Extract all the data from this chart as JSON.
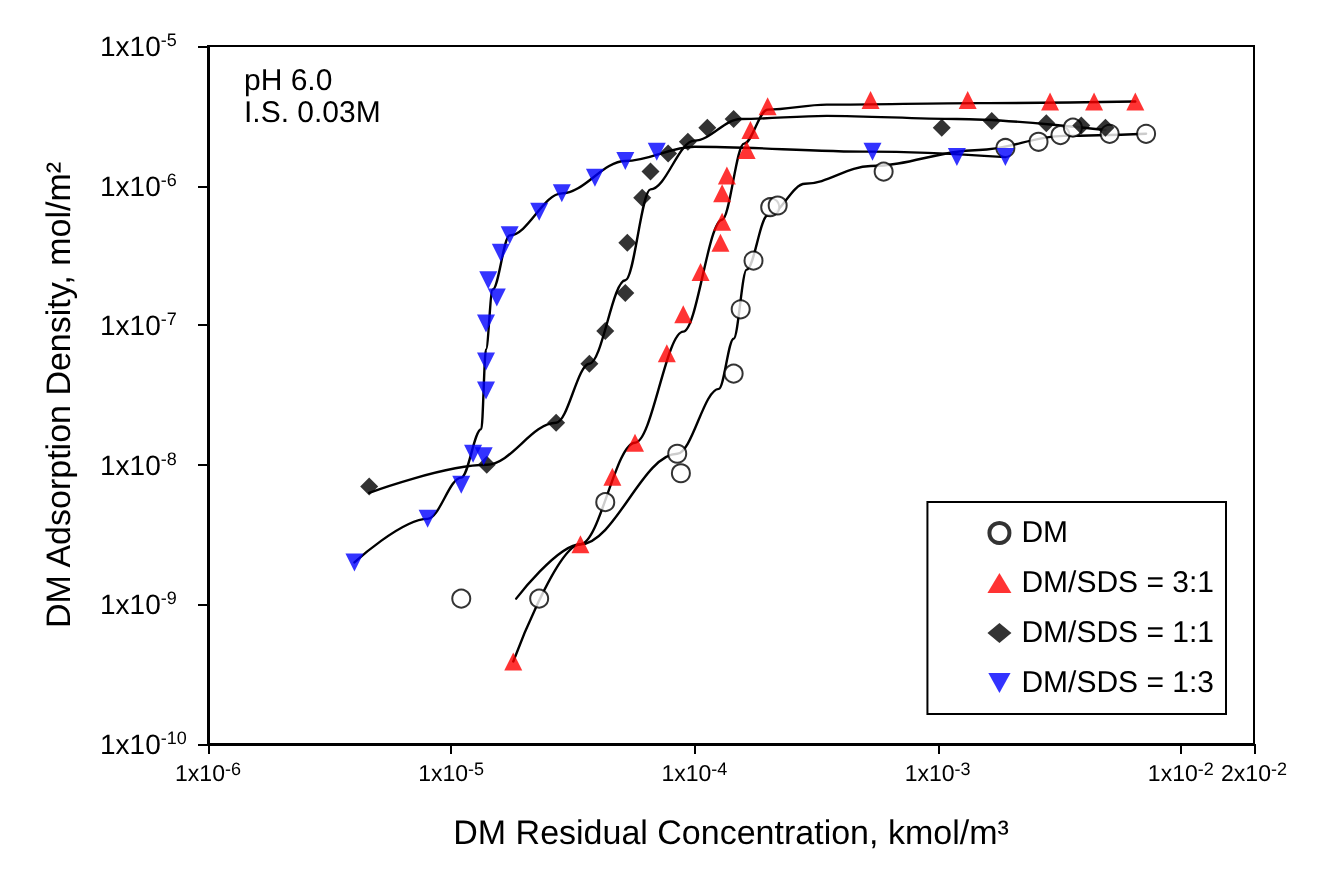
{
  "chart_data": {
    "type": "scatter",
    "xlabel": "DM Residual Concentration, kmol/m³",
    "ylabel": "DM Adsorption Density, mol/m²",
    "annotations": [
      "pH 6.0",
      "I.S. 0.03M"
    ],
    "log": "xy",
    "grid": false,
    "legend": "bottom right",
    "xlim": [
      1e-06,
      0.02
    ],
    "xticks": [
      {
        "value": 1e-06,
        "label": "1x10$^{-6}$"
      },
      {
        "value": 1e-05,
        "label": "1x10$^{-5}$"
      },
      {
        "value": 0.0001,
        "label": "1x10$^{-4}$"
      },
      {
        "value": 0.001,
        "label": "1x10$^{-3}$"
      },
      {
        "value": 0.01,
        "label": "1x10$^{-2}$"
      },
      {
        "value": 0.02,
        "label": "2x10$^{-2}$"
      }
    ],
    "ylim": [
      1e-10,
      1e-05
    ],
    "yticks": [
      {
        "value": 1e-10,
        "label": "1x10$^{-10}$"
      },
      {
        "value": 1e-09,
        "label": "1x10$^{-9}$"
      },
      {
        "value": 1e-08,
        "label": "1x10$^{-8}$"
      },
      {
        "value": 1e-07,
        "label": "1x10$^{-7}$"
      },
      {
        "value": 1e-06,
        "label": "1x10$^{-6}$"
      },
      {
        "value": 1e-05,
        "label": "1x10$^{-5}$"
      }
    ],
    "series": [
      {
        "name": "DM",
        "color": "#000000",
        "marker": "circle",
        "x": [
          1.1e-05,
          2.3e-05,
          4.3e-05,
          8.5e-05,
          8.8e-05,
          0.000145,
          0.000155,
          0.000175,
          0.000205,
          0.00022,
          0.0006,
          0.0019,
          0.0026,
          0.0032,
          0.0036,
          0.0051,
          0.0072
        ],
        "values": [
          1.1e-09,
          1.1e-09,
          5.4e-09,
          1.2e-08,
          8.7e-09,
          4.5e-08,
          1.3e-07,
          2.9e-07,
          7e-07,
          7.2e-07,
          1.26e-06,
          1.86e-06,
          2.06e-06,
          2.3e-06,
          2.6e-06,
          2.35e-06,
          2.35e-06
        ]
      },
      {
        "name": "DM/SDS = 3:1",
        "color": "#ff0000",
        "marker": "triangle",
        "x": [
          1.8e-05,
          3.4e-05,
          4.6e-05,
          5.7e-05,
          7.7e-05,
          9e-05,
          0.000106,
          0.000128,
          0.00013,
          0.00013,
          0.000136,
          0.000164,
          0.00017,
          0.0002,
          0.00053,
          0.00133,
          0.0029,
          0.0044,
          0.0065
        ],
        "values": [
          3.9e-10,
          2.7e-09,
          8.2e-09,
          1.44e-08,
          6.3e-08,
          1.2e-07,
          2.4e-07,
          3.9e-07,
          5.5e-07,
          8.8e-07,
          1.18e-06,
          1.8e-06,
          2.5e-06,
          3.7e-06,
          4.1e-06,
          4.1e-06,
          4e-06,
          4e-06,
          4e-06
        ]
      },
      {
        "name": "DM/SDS = 1:1",
        "color": "#000000",
        "marker": "diamond",
        "x": [
          4.6e-06,
          1.4e-05,
          2.7e-05,
          3.7e-05,
          4.3e-05,
          5.2e-05,
          5.3e-05,
          6.1e-05,
          6.6e-05,
          7.8e-05,
          9.4e-05,
          0.000113,
          0.000145,
          0.00104,
          0.00167,
          0.0028,
          0.0039,
          0.0049
        ],
        "values": [
          7e-09,
          1e-08,
          2e-08,
          5.3e-08,
          9.1e-08,
          1.7e-07,
          3.9e-07,
          8.2e-07,
          1.26e-06,
          1.7e-06,
          2.06e-06,
          2.6e-06,
          3e-06,
          2.6e-06,
          2.9e-06,
          2.8e-06,
          2.7e-06,
          2.6e-06
        ]
      },
      {
        "name": "DM/SDS = 1:3",
        "color": "#0000ff",
        "marker": "triangle-down",
        "x": [
          4e-06,
          8e-06,
          1.1e-05,
          1.23e-05,
          1.36e-05,
          1.39e-05,
          1.39e-05,
          1.39e-05,
          1.54e-05,
          1.42e-05,
          1.6e-05,
          1.74e-05,
          2.3e-05,
          2.85e-05,
          3.9e-05,
          5.2e-05,
          7e-05,
          0.00054,
          0.0012,
          0.0019
        ],
        "values": [
          2e-09,
          4.1e-09,
          7.2e-09,
          1.2e-08,
          1.15e-08,
          3.4e-08,
          5.5e-08,
          1.03e-07,
          1.58e-07,
          2.1e-07,
          3.3e-07,
          4.4e-07,
          6.5e-07,
          8.8e-07,
          1.14e-06,
          1.5e-06,
          1.75e-06,
          1.75e-06,
          1.6e-06,
          1.6e-06
        ]
      },
      {
        "type": "line",
        "color": "#000000",
        "marker": "none",
        "x": [
          1.85e-05,
          3.4e-05,
          8.5e-05,
          0.000126,
          0.000145,
          0.000164,
          0.0002,
          0.000285,
          0.00053,
          0.00148,
          0.0033,
          0.0072
        ],
        "values": [
          1.1e-09,
          2.7e-09,
          1.2e-08,
          3.5e-08,
          8e-08,
          2.5e-07,
          6.1e-07,
          1.03e-06,
          1.38e-06,
          1.8e-06,
          2.27e-06,
          2.35e-06
        ]
      },
      {
        "type": "line",
        "color": "#000000",
        "marker": "none",
        "x": [
          1.8e-05,
          3.4e-05,
          5.7e-05,
          9e-05,
          0.00013,
          0.00016,
          0.0002,
          0.00035,
          0.0015,
          0.0065
        ],
        "values": [
          3.9e-10,
          2.7e-09,
          1.44e-08,
          9e-08,
          5.7e-07,
          2e-06,
          3.5e-06,
          3.8e-06,
          3.9e-06,
          4e-06
        ]
      },
      {
        "type": "line",
        "color": "#000000",
        "marker": "none",
        "x": [
          4.6e-06,
          1.4e-05,
          2.7e-05,
          3.7e-05,
          5.2e-05,
          6.6e-05,
          0.0001,
          0.000155,
          0.00035,
          0.0012,
          0.0049
        ],
        "values": [
          6.3e-09,
          1e-08,
          2e-08,
          5.3e-08,
          2.1e-07,
          9.4e-07,
          2.1e-06,
          3e-06,
          3.16e-06,
          3e-06,
          2.5e-06
        ]
      },
      {
        "type": "line",
        "color": "#000000",
        "marker": "none",
        "x": [
          4e-06,
          8e-06,
          1.1e-05,
          1.33e-05,
          1.39e-05,
          1.48e-05,
          1.74e-05,
          2.85e-05,
          5.2e-05,
          0.0001,
          0.00053,
          0.0019
        ],
        "values": [
          2e-09,
          4.1e-09,
          8.1e-09,
          1.8e-08,
          6.7e-08,
          1.8e-07,
          4.4e-07,
          8.8e-07,
          1.5e-06,
          1.9e-06,
          1.75e-06,
          1.6e-06
        ]
      }
    ]
  }
}
